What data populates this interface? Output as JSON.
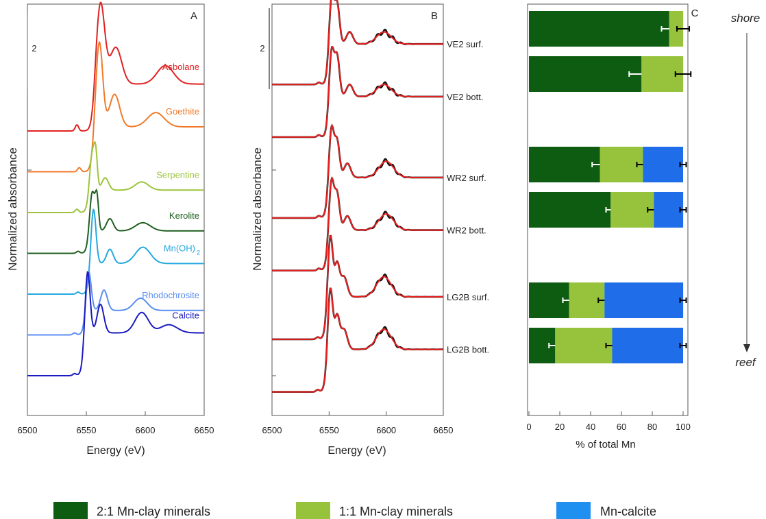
{
  "chart_data": [
    {
      "type": "line",
      "panel_label": "A",
      "xlabel": "Energy (eV)",
      "ylabel": "Normalized absorbance",
      "xlim": [
        6500,
        6650
      ],
      "x_ticks": [
        "6500",
        "6550",
        "6600",
        "6650"
      ],
      "scale_bar_label": "2",
      "series": [
        {
          "name": "Asbolane",
          "color": "#e02020",
          "offset": 6,
          "edge": 6557,
          "peaks": [
            [
              6562,
              2.0,
              5
            ],
            [
              6575,
              0.9,
              7
            ],
            [
              6617,
              0.45,
              10
            ]
          ],
          "pre": [
            6542,
            0.15
          ],
          "post": 1.15
        },
        {
          "name": "Goethite",
          "color": "#f07a2a",
          "offset": 5,
          "edge": 6556,
          "peaks": [
            [
              6561,
              2.1,
              4
            ],
            [
              6574,
              0.8,
              6
            ],
            [
              6609,
              0.35,
              10
            ]
          ],
          "pre": [
            6544,
            0.1
          ],
          "post": 1.1
        },
        {
          "name": "Serpentine",
          "color": "#9cc43a",
          "offset": 4,
          "edge": 6552,
          "peaks": [
            [
              6555,
              0.95,
              3
            ],
            [
              6558,
              0.75,
              2
            ],
            [
              6566,
              0.3,
              4
            ],
            [
              6597,
              0.2,
              8
            ]
          ],
          "pre": [
            6542,
            0.08
          ],
          "post": 0.55
        },
        {
          "name": "Kerolite",
          "color": "#1e5e1e",
          "offset": 3,
          "edge": 6552,
          "peaks": [
            [
              6555,
              1.0,
              3
            ],
            [
              6559,
              0.8,
              2
            ],
            [
              6570,
              0.3,
              4
            ],
            [
              6598,
              0.2,
              9
            ]
          ],
          "pre": [
            6543,
            0.05
          ],
          "post": 0.55
        },
        {
          "name": "Mn(OH)",
          "subscript": "2",
          "color": "#24a8e0",
          "offset": 2,
          "edge": 6553,
          "peaks": [
            [
              6556,
              1.4,
              3
            ],
            [
              6570,
              0.35,
              4
            ],
            [
              6598,
              0.4,
              9
            ]
          ],
          "pre": [
            6543,
            0.05
          ],
          "post": 0.75
        },
        {
          "name": "Rhodochrosite",
          "color": "#5a8ef0",
          "offset": 1,
          "edge": 6549,
          "peaks": [
            [
              6552,
              1.0,
              3
            ],
            [
              6565,
              0.5,
              4
            ],
            [
              6596,
              0.3,
              8
            ]
          ],
          "pre": [
            6540,
            0.05
          ],
          "post": 0.6
        },
        {
          "name": "Calcite",
          "color": "#1a1ac0",
          "offset": 0,
          "edge": 6548,
          "peaks": [
            [
              6551,
              1.6,
              3
            ],
            [
              6562,
              0.7,
              4
            ],
            [
              6597,
              0.5,
              8
            ],
            [
              6620,
              0.2,
              10
            ]
          ],
          "pre": [
            6540,
            0.05
          ],
          "post": 1.05
        }
      ]
    },
    {
      "type": "line",
      "panel_label": "B",
      "xlabel": "Energy (eV)",
      "ylabel": "Normalized absorbance",
      "xlim": [
        6500,
        6650
      ],
      "x_ticks": [
        "6500",
        "6550",
        "6600",
        "6650"
      ],
      "scale_bar_label": "2",
      "data_color": "#111111",
      "fit_color": "#e82020",
      "series": [
        {
          "name": "VE2 surf.",
          "offset": 7.2,
          "edge": 6550,
          "peaks": [
            [
              6552,
              1.3,
              3
            ],
            [
              6557,
              1.0,
              3
            ],
            [
              6568,
              0.3,
              4
            ],
            [
              6598,
              0.3,
              9
            ]
          ],
          "pre": [
            6541,
            0.05
          ],
          "post": 1.0
        },
        {
          "name": "VE2 bott.",
          "offset": 5.9,
          "edge": 6550,
          "peaks": [
            [
              6552,
              1.3,
              3
            ],
            [
              6557,
              1.0,
              3
            ],
            [
              6568,
              0.3,
              4
            ],
            [
              6598,
              0.3,
              9
            ]
          ],
          "pre": [
            6541,
            0.05
          ],
          "post": 1.0
        },
        {
          "name": "WR2 surf.",
          "offset": 3.9,
          "edge": 6549,
          "peaks": [
            [
              6552,
              1.3,
              3
            ],
            [
              6557,
              0.9,
              3
            ],
            [
              6566,
              0.35,
              4
            ],
            [
              6600,
              0.4,
              9
            ]
          ],
          "pre": [
            6541,
            0.05
          ],
          "post": 1.0
        },
        {
          "name": "WR2 bott.",
          "offset": 2.6,
          "edge": 6549,
          "peaks": [
            [
              6552,
              1.3,
              3
            ],
            [
              6557,
              0.9,
              3
            ],
            [
              6566,
              0.35,
              4
            ],
            [
              6600,
              0.4,
              9
            ]
          ],
          "pre": [
            6541,
            0.05
          ],
          "post": 1.0
        },
        {
          "name": "LG2B surf.",
          "offset": 0.9,
          "edge": 6548,
          "peaks": [
            [
              6551,
              1.6,
              3
            ],
            [
              6557,
              0.8,
              3
            ],
            [
              6563,
              0.5,
              4
            ],
            [
              6598,
              0.5,
              9
            ]
          ],
          "pre": [
            6540,
            0.05
          ],
          "post": 1.05
        },
        {
          "name": "LG2B bott.",
          "offset": -0.4,
          "edge": 6548,
          "peaks": [
            [
              6551,
              1.6,
              3
            ],
            [
              6557,
              0.8,
              3
            ],
            [
              6563,
              0.5,
              4
            ],
            [
              6598,
              0.5,
              9
            ]
          ],
          "pre": [
            6540,
            0.05
          ],
          "post": 1.05
        }
      ]
    },
    {
      "type": "bar",
      "orientation": "horizontal",
      "stacked": true,
      "panel_label": "C",
      "xlabel": "% of total Mn",
      "xlim": [
        0,
        100
      ],
      "x_ticks": [
        "0",
        "20",
        "40",
        "60",
        "80",
        "100"
      ],
      "categories": [
        "VE2 surf.",
        "VE2 bott.",
        "WR2 surf.",
        "WR2 bott.",
        "LG2B surf.",
        "LG2B bott."
      ],
      "slot": [
        0,
        1,
        3,
        4,
        6,
        7
      ],
      "series": [
        {
          "name": "2:1 Mn-clay minerals",
          "color": "#0d5c12",
          "values": [
            91,
            73,
            46,
            53,
            26,
            17
          ],
          "err": [
            5,
            8,
            5,
            3,
            4,
            4
          ],
          "err_color": "#ffffff"
        },
        {
          "name": "1:1 Mn-clay minerals",
          "color": "#96c23c",
          "values": [
            9,
            27,
            28,
            28,
            23,
            37
          ],
          "err": [
            4,
            5,
            4,
            4,
            4,
            4
          ],
          "err_color": "#000000"
        },
        {
          "name": "Mn-calcite",
          "color": "#1f6de8",
          "values": [
            0,
            0,
            26,
            19,
            51,
            46
          ],
          "err": [
            0,
            0,
            2,
            2,
            2,
            2
          ],
          "err_color": "#000000"
        }
      ],
      "direction_labels": {
        "top": "shore",
        "bottom": "reef"
      }
    }
  ],
  "legend": [
    {
      "label": "2:1 Mn-clay minerals",
      "color": "#0d5c12"
    },
    {
      "label": "1:1 Mn-clay minerals",
      "color": "#96c23c"
    },
    {
      "label": "Mn-calcite",
      "color": "#1f8ff0"
    }
  ]
}
